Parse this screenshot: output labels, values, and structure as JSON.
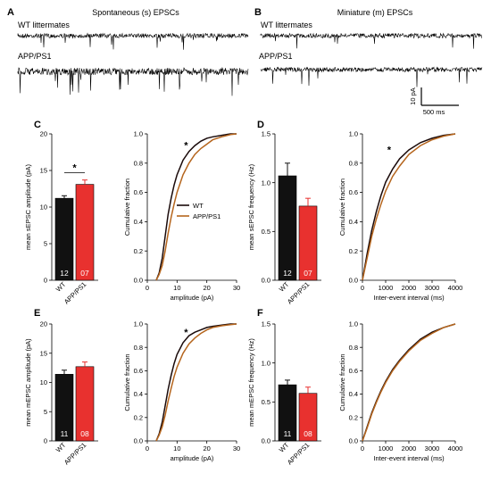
{
  "colors": {
    "wt": "#111111",
    "app": "#e8312f",
    "wt_line": "#1a0a0a",
    "app_line": "#b5651d"
  },
  "traces": {
    "letter_a": "A",
    "letter_b": "B",
    "title_a": "Spontaneous (s) EPSCs",
    "title_b": "Miniature (m) EPSCs",
    "label_wt": "WT littermates",
    "label_app": "APP/PS1",
    "scale_y": "10 pA",
    "scale_x": "500 ms"
  },
  "legend": {
    "wt": "WT",
    "app": "APP/PS1"
  },
  "chart_data": [
    {
      "panel": "C",
      "type": "bar",
      "ylabel": "mean sEPSC amplitude (pA)",
      "ylim": [
        0,
        20
      ],
      "yticks": [
        0,
        5,
        10,
        15,
        20
      ],
      "categories": [
        "WT",
        "APP/PS1"
      ],
      "values": [
        11.2,
        13.1
      ],
      "errors": [
        0.35,
        0.6
      ],
      "n": [
        "12",
        "07"
      ],
      "significance": "*"
    },
    {
      "panel": "C2",
      "type": "line",
      "xlabel": "amplitude (pA)",
      "ylabel": "Cumulative fraction",
      "xlim": [
        0,
        30
      ],
      "ylim": [
        0,
        1.0
      ],
      "xticks": [
        0,
        10,
        20,
        30
      ],
      "yticks": [
        0,
        0.2,
        0.4,
        0.6,
        0.8,
        1.0
      ],
      "series": [
        {
          "name": "WT",
          "x": [
            3,
            4,
            5,
            6,
            7,
            8,
            9,
            10,
            12,
            14,
            16,
            18,
            20,
            22,
            25,
            28,
            30
          ],
          "y": [
            0,
            0.05,
            0.15,
            0.3,
            0.45,
            0.56,
            0.65,
            0.72,
            0.82,
            0.88,
            0.92,
            0.95,
            0.97,
            0.98,
            0.99,
            1.0,
            1.0
          ]
        },
        {
          "name": "APP/PS1",
          "x": [
            3,
            4,
            5,
            6,
            7,
            8,
            9,
            10,
            12,
            14,
            16,
            18,
            20,
            22,
            25,
            28,
            30
          ],
          "y": [
            0,
            0.04,
            0.1,
            0.2,
            0.32,
            0.43,
            0.52,
            0.6,
            0.72,
            0.8,
            0.86,
            0.9,
            0.93,
            0.96,
            0.98,
            0.995,
            1.0
          ]
        }
      ],
      "annotation": "*"
    },
    {
      "panel": "D",
      "type": "bar",
      "ylabel": "mean sEPSC frequency (Hz)",
      "ylim": [
        0,
        1.5
      ],
      "yticks": [
        0.0,
        0.5,
        1.0,
        1.5
      ],
      "categories": [
        "WT",
        "APP/PS1"
      ],
      "values": [
        1.07,
        0.76
      ],
      "errors": [
        0.13,
        0.08
      ],
      "n": [
        "12",
        "07"
      ]
    },
    {
      "panel": "D2",
      "type": "line",
      "xlabel": "Inter-event interval (ms)",
      "ylabel": "Cumulative fraction",
      "xlim": [
        0,
        4000
      ],
      "ylim": [
        0,
        1.0
      ],
      "xticks": [
        0,
        1000,
        2000,
        3000,
        4000
      ],
      "yticks": [
        0,
        0.2,
        0.4,
        0.6,
        0.8,
        1.0
      ],
      "series": [
        {
          "name": "WT",
          "x": [
            0,
            200,
            400,
            600,
            800,
            1000,
            1300,
            1600,
            2000,
            2500,
            3000,
            3500,
            4000
          ],
          "y": [
            0,
            0.18,
            0.34,
            0.47,
            0.58,
            0.67,
            0.76,
            0.83,
            0.89,
            0.94,
            0.97,
            0.99,
            1.0
          ]
        },
        {
          "name": "APP/PS1",
          "x": [
            0,
            200,
            400,
            600,
            800,
            1000,
            1300,
            1600,
            2000,
            2500,
            3000,
            3500,
            4000
          ],
          "y": [
            0,
            0.15,
            0.3,
            0.42,
            0.52,
            0.61,
            0.71,
            0.78,
            0.86,
            0.92,
            0.96,
            0.985,
            1.0
          ]
        }
      ],
      "annotation": "*"
    },
    {
      "panel": "E",
      "type": "bar",
      "ylabel": "mean mEPSC amplitude (pA)",
      "ylim": [
        0,
        20
      ],
      "yticks": [
        0,
        5,
        10,
        15,
        20
      ],
      "categories": [
        "WT",
        "APP/PS1"
      ],
      "values": [
        11.4,
        12.7
      ],
      "errors": [
        0.7,
        0.8
      ],
      "n": [
        "11",
        "08"
      ]
    },
    {
      "panel": "E2",
      "type": "line",
      "xlabel": "amplitude (pA)",
      "ylabel": "Cumulative fraction",
      "xlim": [
        0,
        30
      ],
      "ylim": [
        0,
        1.0
      ],
      "xticks": [
        0,
        10,
        20,
        30
      ],
      "yticks": [
        0,
        0.2,
        0.4,
        0.6,
        0.8,
        1.0
      ],
      "series": [
        {
          "name": "WT",
          "x": [
            3,
            4,
            5,
            6,
            7,
            8,
            9,
            10,
            12,
            14,
            16,
            18,
            20,
            22,
            25,
            28,
            30
          ],
          "y": [
            0,
            0.06,
            0.16,
            0.3,
            0.44,
            0.56,
            0.66,
            0.74,
            0.84,
            0.9,
            0.93,
            0.95,
            0.97,
            0.98,
            0.99,
            1.0,
            1.0
          ]
        },
        {
          "name": "APP/PS1",
          "x": [
            3,
            4,
            5,
            6,
            7,
            8,
            9,
            10,
            12,
            14,
            16,
            18,
            20,
            22,
            25,
            28,
            30
          ],
          "y": [
            0,
            0.05,
            0.12,
            0.22,
            0.34,
            0.45,
            0.55,
            0.63,
            0.75,
            0.83,
            0.88,
            0.92,
            0.95,
            0.97,
            0.985,
            0.995,
            1.0
          ]
        }
      ],
      "annotation": "*"
    },
    {
      "panel": "F",
      "type": "bar",
      "ylabel": "mean mEPSC frequency (Hz)",
      "ylim": [
        0,
        1.5
      ],
      "yticks": [
        0.0,
        0.5,
        1.0,
        1.5
      ],
      "categories": [
        "WT",
        "APP/PS1"
      ],
      "values": [
        0.72,
        0.61
      ],
      "errors": [
        0.06,
        0.08
      ],
      "n": [
        "11",
        "08"
      ]
    },
    {
      "panel": "F2",
      "type": "line",
      "xlabel": "Inter-event interval (ms)",
      "ylabel": "Cumulative fraction",
      "xlim": [
        0,
        4000
      ],
      "ylim": [
        0,
        1.0
      ],
      "xticks": [
        0,
        1000,
        2000,
        3000,
        4000
      ],
      "yticks": [
        0,
        0.2,
        0.4,
        0.6,
        0.8,
        1.0
      ],
      "series": [
        {
          "name": "WT",
          "x": [
            0,
            200,
            400,
            600,
            800,
            1000,
            1300,
            1600,
            2000,
            2500,
            3000,
            3500,
            4000
          ],
          "y": [
            0,
            0.12,
            0.24,
            0.34,
            0.43,
            0.51,
            0.61,
            0.69,
            0.78,
            0.87,
            0.93,
            0.97,
            1.0
          ]
        },
        {
          "name": "APP/PS1",
          "x": [
            0,
            200,
            400,
            600,
            800,
            1000,
            1300,
            1600,
            2000,
            2500,
            3000,
            3500,
            4000
          ],
          "y": [
            0,
            0.11,
            0.23,
            0.33,
            0.42,
            0.5,
            0.6,
            0.68,
            0.77,
            0.86,
            0.92,
            0.97,
            1.0
          ]
        }
      ]
    }
  ]
}
